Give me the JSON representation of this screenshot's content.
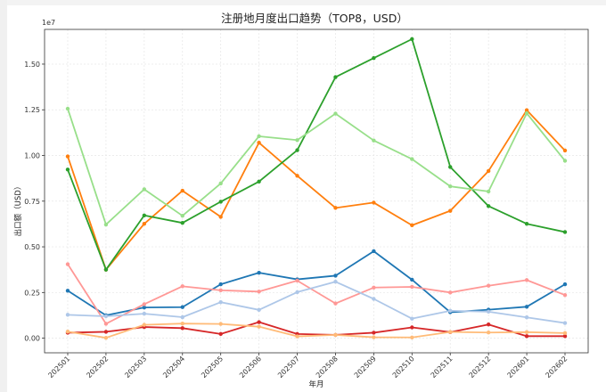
{
  "chart_data": {
    "type": "line",
    "title": "注册地月度出口趋势（TOP8，USD）",
    "xlabel": "年月",
    "ylabel": "出口额（USD）",
    "y_multiplier_label": "1e7",
    "categories": [
      "202501",
      "202502",
      "202503",
      "202504",
      "202505",
      "202506",
      "202507",
      "202508",
      "202509",
      "202510",
      "202511",
      "202512",
      "202601",
      "202602"
    ],
    "yticks": [
      {
        "value": 0,
        "label": "0.00"
      },
      {
        "value": 2500000,
        "label": "0.25"
      },
      {
        "value": 5000000,
        "label": "0.50"
      },
      {
        "value": 7500000,
        "label": "0.75"
      },
      {
        "value": 10000000,
        "label": "1.00"
      },
      {
        "value": 12500000,
        "label": "1.25"
      },
      {
        "value": 15000000,
        "label": "1.50"
      }
    ],
    "ylim": [
      -800000,
      16900000
    ],
    "grid": true,
    "series": [
      {
        "color": "#1f77b4",
        "values": [
          2600000,
          1250000,
          1680000,
          1700000,
          2950000,
          3580000,
          3220000,
          3420000,
          4760000,
          3200000,
          1420000,
          1560000,
          1720000,
          2950000
        ]
      },
      {
        "color": "#ff7f0e",
        "values": [
          9950000,
          3750000,
          6260000,
          8070000,
          6640000,
          10700000,
          8890000,
          7130000,
          7420000,
          6180000,
          6970000,
          9150000,
          12480000,
          10270000
        ]
      },
      {
        "color": "#2ca02c",
        "values": [
          9230000,
          3750000,
          6720000,
          6310000,
          7470000,
          8570000,
          10290000,
          14290000,
          15330000,
          16370000,
          9370000,
          7230000,
          6260000,
          5810000
        ]
      },
      {
        "color": "#d62728",
        "values": [
          300000,
          350000,
          610000,
          550000,
          230000,
          880000,
          230000,
          180000,
          300000,
          590000,
          330000,
          750000,
          110000,
          110000
        ]
      },
      {
        "color": "#98df8a",
        "values": [
          12560000,
          6220000,
          8150000,
          6700000,
          8470000,
          11050000,
          10840000,
          12290000,
          10820000,
          9800000,
          8310000,
          8030000,
          12310000,
          9710000
        ]
      },
      {
        "color": "#ff9896",
        "values": [
          4050000,
          790000,
          1860000,
          2840000,
          2620000,
          2550000,
          3150000,
          1900000,
          2770000,
          2810000,
          2500000,
          2870000,
          3180000,
          2360000
        ]
      },
      {
        "color": "#aec7e8",
        "values": [
          1280000,
          1200000,
          1340000,
          1150000,
          1970000,
          1550000,
          2520000,
          3090000,
          2150000,
          1070000,
          1500000,
          1450000,
          1140000,
          830000
        ]
      },
      {
        "color": "#ffbb78",
        "values": [
          360000,
          20000,
          730000,
          800000,
          780000,
          630000,
          100000,
          180000,
          50000,
          40000,
          340000,
          310000,
          330000,
          280000
        ]
      }
    ]
  }
}
